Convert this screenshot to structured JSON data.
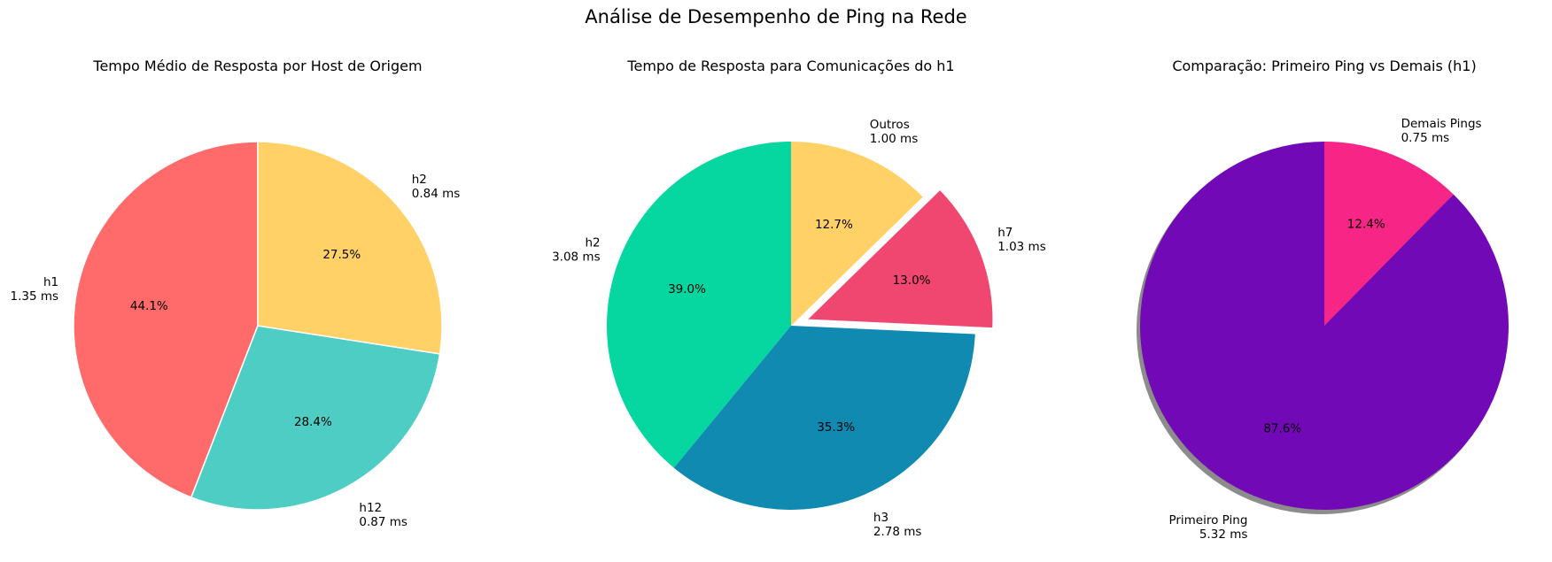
{
  "figure_title": "Análise de Desempenho de Ping na Rede",
  "chart_data": [
    {
      "type": "pie",
      "title": "Tempo Médio de Resposta por Host de Origem",
      "unit": "ms",
      "start_angle_deg": 90,
      "direction": "counterclockwise",
      "shadow": false,
      "edge_color": "#ffffff",
      "slices": [
        {
          "label": "h1",
          "value": 1.35,
          "value_label": "1.35 ms",
          "pct_label": "44.1%",
          "color": "#FF6B6B",
          "explode": 0
        },
        {
          "label": "h12",
          "value": 0.87,
          "value_label": "0.87 ms",
          "pct_label": "28.4%",
          "color": "#4ECDC4",
          "explode": 0
        },
        {
          "label": "h2",
          "value": 0.84,
          "value_label": "0.84 ms",
          "pct_label": "27.5%",
          "color": "#FFD166",
          "explode": 0
        }
      ]
    },
    {
      "type": "pie",
      "title": "Tempo de Resposta para Comunicações do h1",
      "unit": "ms",
      "start_angle_deg": 90,
      "direction": "counterclockwise",
      "shadow": false,
      "edge_color": null,
      "slices": [
        {
          "label": "h2",
          "value": 3.08,
          "value_label": "3.08 ms",
          "pct_label": "39.0%",
          "color": "#06D6A0",
          "explode": 0
        },
        {
          "label": "h3",
          "value": 2.78,
          "value_label": "2.78 ms",
          "pct_label": "35.3%",
          "color": "#118AB2",
          "explode": 0
        },
        {
          "label": "h7",
          "value": 1.03,
          "value_label": "1.03 ms",
          "pct_label": "13.0%",
          "color": "#EF476F",
          "explode": 0.1
        },
        {
          "label": "Outros",
          "value": 1.0,
          "value_label": "1.00 ms",
          "pct_label": "12.7%",
          "color": "#FFD166",
          "explode": 0
        }
      ]
    },
    {
      "type": "pie",
      "title": "Comparação: Primeiro Ping vs Demais (h1)",
      "unit": "ms",
      "start_angle_deg": 90,
      "direction": "counterclockwise",
      "shadow": true,
      "edge_color": null,
      "slices": [
        {
          "label": "Primeiro Ping",
          "value": 5.32,
          "value_label": "5.32 ms",
          "pct_label": "87.6%",
          "color": "#7209B7",
          "explode": 0
        },
        {
          "label": "Demais Pings",
          "value": 0.75,
          "value_label": "0.75 ms",
          "pct_label": "12.4%",
          "color": "#F72585",
          "explode": 0
        }
      ]
    }
  ]
}
